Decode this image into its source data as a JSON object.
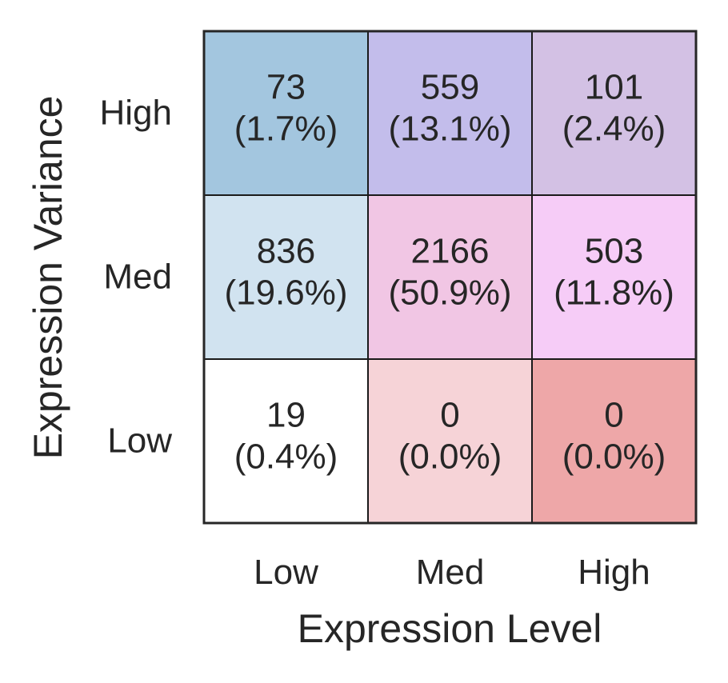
{
  "chart_data": {
    "type": "heatmap",
    "title": "",
    "xlabel": "Expression Level",
    "ylabel": "Expression Variance",
    "x_categories": [
      "Low",
      "Med",
      "High"
    ],
    "y_categories": [
      "High",
      "Med",
      "Low"
    ],
    "cells": [
      [
        {
          "count": "73",
          "percent": "(1.7%)",
          "color": "#a3c6df"
        },
        {
          "count": "559",
          "percent": "(13.1%)",
          "color": "#c3bdeb"
        },
        {
          "count": "101",
          "percent": "(2.4%)",
          "color": "#d3c1e4"
        }
      ],
      [
        {
          "count": "836",
          "percent": "(19.6%)",
          "color": "#d1e3f0"
        },
        {
          "count": "2166",
          "percent": "(50.9%)",
          "color": "#f1c6e4"
        },
        {
          "count": "503",
          "percent": "(11.8%)",
          "color": "#f6ccf7"
        }
      ],
      [
        {
          "count": "19",
          "percent": "(0.4%)",
          "color": "#ffffff"
        },
        {
          "count": "0",
          "percent": "(0.0%)",
          "color": "#f6d3d7"
        },
        {
          "count": "0",
          "percent": "(0.0%)",
          "color": "#eea7a8"
        }
      ]
    ],
    "grid": true,
    "legend": "none"
  }
}
